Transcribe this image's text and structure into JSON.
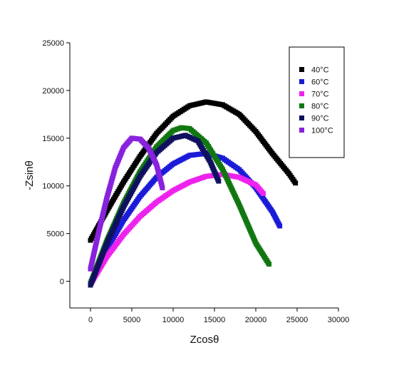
{
  "chart_data": {
    "type": "scatter",
    "title": "",
    "xlabel": "Zcosθ",
    "ylabel": "-Zsinθ",
    "xlim": [
      -2500,
      30000
    ],
    "ylim": [
      -2800,
      25000
    ],
    "x_ticks": [
      "0",
      "5000",
      "10000",
      "15000",
      "20000",
      "25000",
      "30000"
    ],
    "y_ticks": [
      "0",
      "5000",
      "10000",
      "15000",
      "20000",
      "25000"
    ],
    "grid": false,
    "legend_position": "top-right",
    "marker": "square",
    "series": [
      {
        "name": "40°C",
        "color": "#000000",
        "x": [
          0,
          2000,
          4000,
          6000,
          8000,
          10000,
          12000,
          14000,
          16000,
          18000,
          20000,
          22000,
          24000,
          24800
        ],
        "y": [
          4300,
          7400,
          10400,
          13100,
          15500,
          17300,
          18400,
          18800,
          18500,
          17500,
          15700,
          13400,
          11300,
          10300
        ]
      },
      {
        "name": "60°C",
        "color": "#1a1ad8",
        "x": [
          0,
          2000,
          4000,
          6000,
          8000,
          10000,
          12000,
          14000,
          16000,
          18000,
          20000,
          22000,
          22900
        ],
        "y": [
          -200,
          3400,
          6400,
          8900,
          10900,
          12300,
          13200,
          13400,
          12900,
          11700,
          9800,
          7300,
          5800
        ]
      },
      {
        "name": "70°C",
        "color": "#ee22ee",
        "x": [
          0,
          2000,
          4000,
          6000,
          8000,
          10000,
          12000,
          14000,
          16000,
          18000,
          20000,
          20900
        ],
        "y": [
          -300,
          2600,
          4900,
          6800,
          8300,
          9500,
          10400,
          11000,
          11200,
          10900,
          10100,
          9200
        ]
      },
      {
        "name": "80°C",
        "color": "#117711",
        "x": [
          0,
          2000,
          4000,
          6000,
          8000,
          10000,
          11000,
          12000,
          14000,
          16000,
          18000,
          20000,
          21600
        ],
        "y": [
          -200,
          4300,
          8200,
          11500,
          14100,
          15800,
          16100,
          16000,
          14500,
          11700,
          8000,
          4000,
          1800
        ]
      },
      {
        "name": "90°C",
        "color": "#101060",
        "x": [
          0,
          2000,
          4000,
          6000,
          8000,
          10000,
          11500,
          13000,
          14500,
          15500
        ],
        "y": [
          -400,
          4000,
          7800,
          11000,
          13500,
          15000,
          15300,
          14700,
          12500,
          10500
        ]
      },
      {
        "name": "100°C",
        "color": "#8822dd",
        "x": [
          0,
          1000,
          2000,
          3000,
          4000,
          5000,
          6000,
          7000,
          8000,
          8700
        ],
        "y": [
          1300,
          5200,
          8800,
          11900,
          14000,
          15000,
          14900,
          14000,
          12200,
          9800
        ]
      }
    ]
  }
}
